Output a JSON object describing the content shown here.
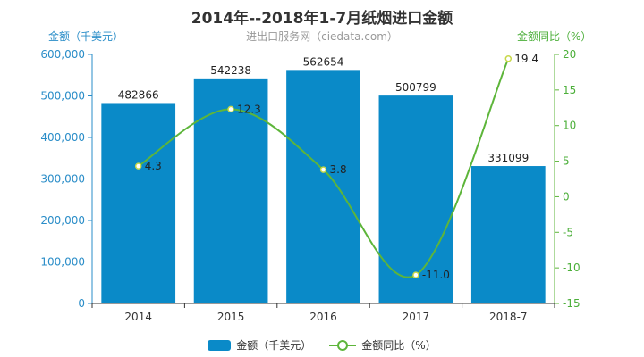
{
  "chart_data": {
    "type": "bar",
    "title": "2014年--2018年1-7月纸烟进口金额",
    "subtitle": "进出口服务网（ciedata.com）",
    "ylabel": "金额（千美元）",
    "y2label": "金额同比（%）",
    "categories": [
      "2014",
      "2015",
      "2016",
      "2017",
      "2018-7"
    ],
    "series": [
      {
        "name": "金额（千美元）",
        "type": "bar",
        "axis": "left",
        "color": "#0a8ac8",
        "values": [
          482866,
          542238,
          562654,
          500799,
          331099
        ],
        "labels": [
          "482866",
          "542238",
          "562654",
          "500799",
          "331099"
        ]
      },
      {
        "name": "金额同比（%）",
        "type": "line",
        "axis": "right",
        "color": "#5db53a",
        "values": [
          4.3,
          12.3,
          3.8,
          -11.0,
          19.4
        ],
        "labels": [
          "4.3",
          "12.3",
          "3.8",
          "-11.0",
          "19.4"
        ]
      }
    ],
    "ylim": [
      0,
      600000
    ],
    "y2lim": [
      -15,
      20
    ],
    "yticks": [
      "0",
      "100,000",
      "200,000",
      "300,000",
      "400,000",
      "500,000",
      "600,000"
    ],
    "y2ticks": [
      "-15",
      "-10",
      "-5",
      "0",
      "5",
      "10",
      "15",
      "20"
    ],
    "legend_position": "bottom"
  }
}
